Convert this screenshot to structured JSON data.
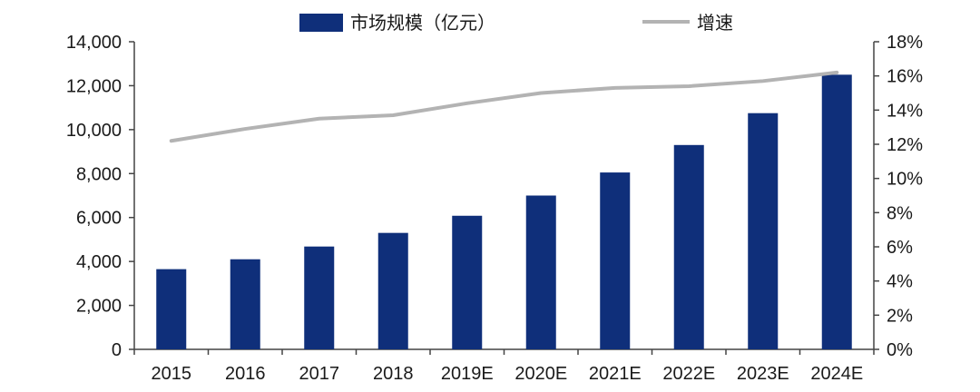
{
  "chart_data": {
    "type": "bar",
    "title": "",
    "categories": [
      "2015",
      "2016",
      "2017",
      "2018",
      "2019E",
      "2020E",
      "2021E",
      "2022E",
      "2023E",
      "2024E"
    ],
    "series": [
      {
        "name": "市场规模（亿元）",
        "type": "bar",
        "axis": "left",
        "color": "#0f2f7a",
        "values": [
          3650,
          4100,
          4680,
          5300,
          6080,
          7000,
          8050,
          9300,
          10750,
          12500
        ]
      },
      {
        "name": "增速",
        "type": "line",
        "axis": "right",
        "color": "#b3b3b3",
        "values": [
          12.2,
          12.9,
          13.5,
          13.7,
          14.4,
          15.0,
          15.3,
          15.4,
          15.7,
          16.2
        ]
      }
    ],
    "y_left": {
      "min": 0,
      "max": 14000,
      "ticks": [
        0,
        2000,
        4000,
        6000,
        8000,
        10000,
        12000,
        14000
      ],
      "tick_labels": [
        "0",
        "2,000",
        "4,000",
        "6,000",
        "8,000",
        "10,000",
        "12,000",
        "14,000"
      ]
    },
    "y_right": {
      "min": 0,
      "max": 18,
      "ticks": [
        0,
        2,
        4,
        6,
        8,
        10,
        12,
        14,
        16,
        18
      ],
      "tick_labels": [
        "0%",
        "2%",
        "4%",
        "6%",
        "8%",
        "10%",
        "12%",
        "14%",
        "16%",
        "18%"
      ]
    },
    "xlabel": "",
    "ylabel": "",
    "grid": false,
    "legend_position": "top"
  }
}
